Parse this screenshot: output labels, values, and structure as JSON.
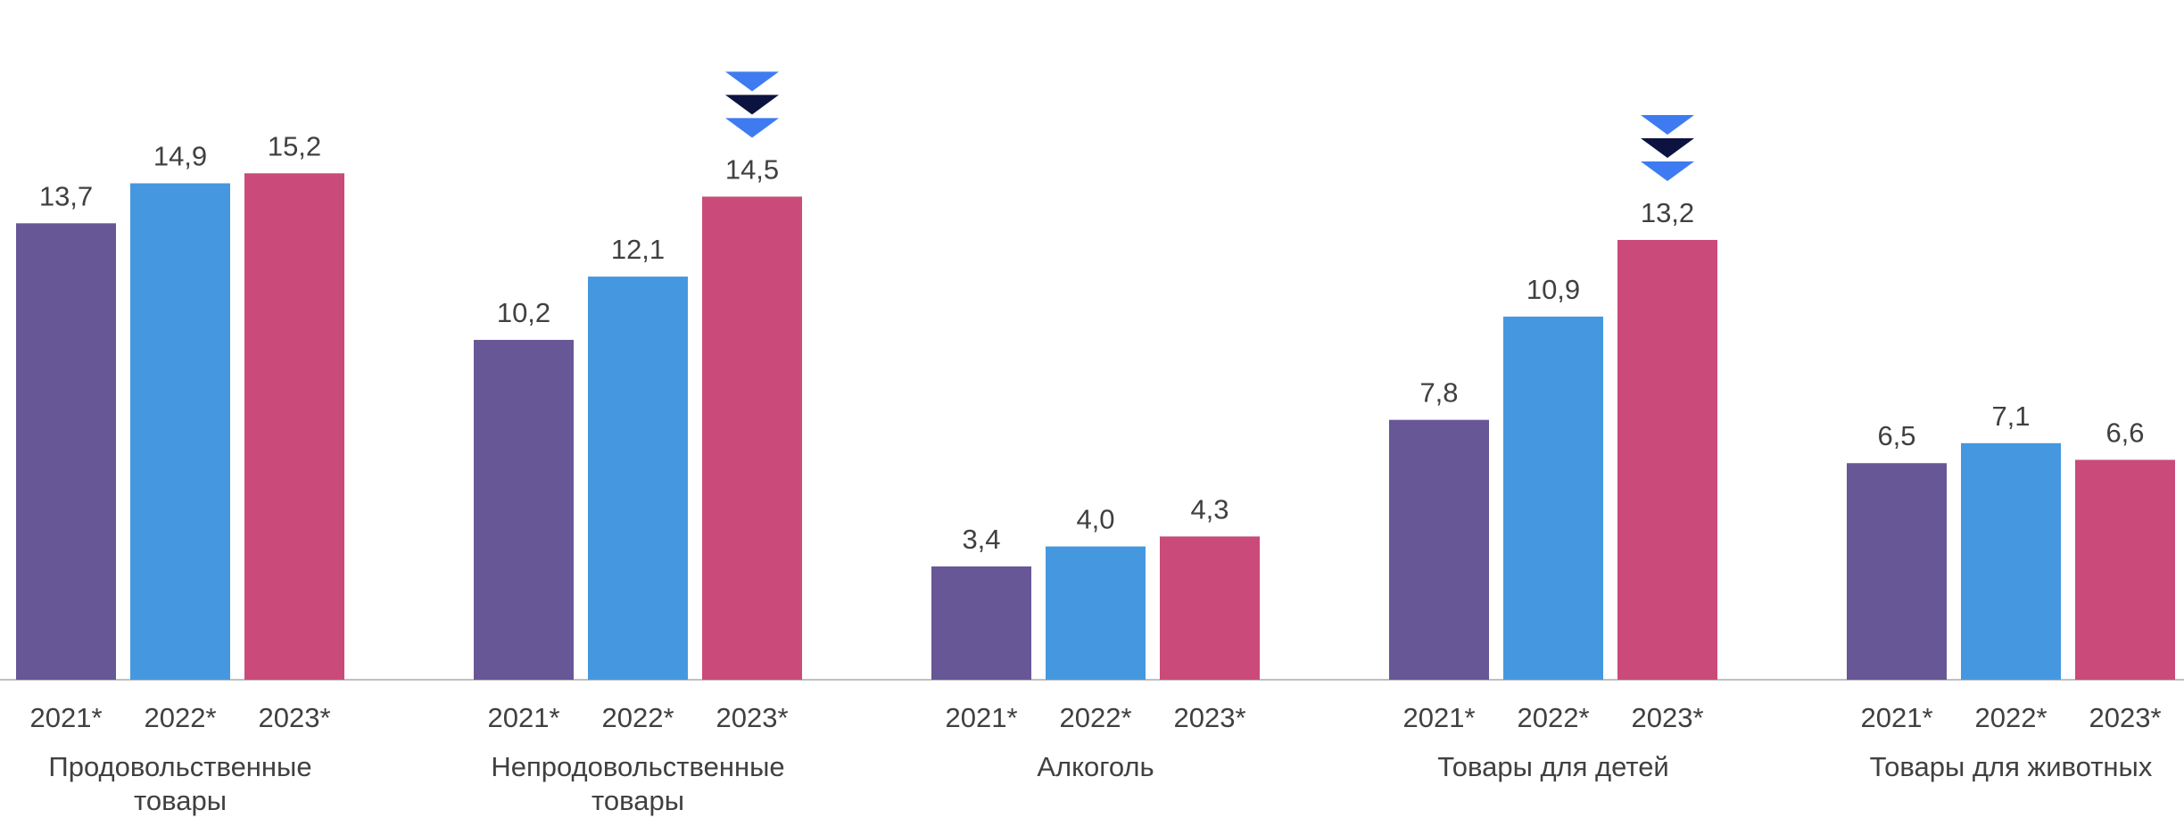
{
  "chart_data": {
    "type": "bar",
    "title": "",
    "xlabel": "",
    "ylabel": "",
    "ylim": [
      0,
      16
    ],
    "grid": false,
    "legend": "none",
    "categories": [
      {
        "lines": [
          "Продовольственные",
          "товары"
        ]
      },
      {
        "lines": [
          "Непродовольственные",
          "товары"
        ]
      },
      {
        "lines": [
          "Алкоголь"
        ]
      },
      {
        "lines": [
          "Товары для детей"
        ]
      },
      {
        "lines": [
          "Товары для животных"
        ]
      }
    ],
    "series": [
      {
        "label": "2021*",
        "color": "#685796",
        "values": [
          13.7,
          10.2,
          3.4,
          7.8,
          6.5
        ],
        "value_labels": [
          "13,7",
          "10,2",
          "3,4",
          "7,8",
          "6,5"
        ]
      },
      {
        "label": "2022*",
        "color": "#4598E0",
        "values": [
          14.9,
          12.1,
          4.0,
          10.9,
          7.1
        ],
        "value_labels": [
          "14,9",
          "12,1",
          "4,0",
          "10,9",
          "7,1"
        ]
      },
      {
        "label": "2023*",
        "color": "#CA4B79",
        "values": [
          15.2,
          14.5,
          4.3,
          13.2,
          6.6
        ],
        "value_labels": [
          "15,2",
          "14,5",
          "4,3",
          "13,2",
          "6,6"
        ]
      }
    ],
    "markers": [
      {
        "category_index": 1,
        "series_index": 2,
        "icon": "double-chevron-down-icon",
        "colors": [
          "#3E7BF0",
          "#0D1340"
        ]
      },
      {
        "category_index": 3,
        "series_index": 2,
        "icon": "double-chevron-down-icon",
        "colors": [
          "#3E7BF0",
          "#0D1340"
        ]
      }
    ],
    "axis_color": "#BFBFBF"
  }
}
